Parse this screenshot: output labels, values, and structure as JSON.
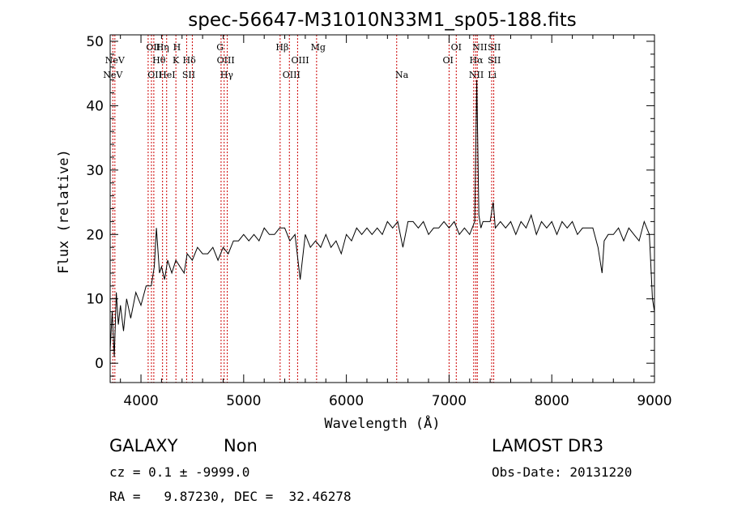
{
  "chart_data": {
    "type": "line",
    "title": "spec-56647-M31010N33M1_sp05-188.fits",
    "xlabel": "Wavelength (Å)",
    "ylabel": "Flux (relative)",
    "xlim": [
      3700,
      9000
    ],
    "ylim": [
      -3,
      51
    ],
    "x_ticks": [
      4000,
      5000,
      6000,
      7000,
      8000,
      9000
    ],
    "y_ticks": [
      0,
      10,
      20,
      30,
      40,
      50
    ],
    "grid": false,
    "line_color": "#000000",
    "marker_color": "#cc0000",
    "spectrum": {
      "x": [
        3700,
        3720,
        3740,
        3760,
        3780,
        3800,
        3830,
        3860,
        3900,
        3950,
        4000,
        4050,
        4100,
        4130,
        4150,
        4180,
        4200,
        4230,
        4260,
        4300,
        4340,
        4380,
        4420,
        4450,
        4500,
        4550,
        4600,
        4650,
        4700,
        4750,
        4800,
        4850,
        4900,
        4950,
        5000,
        5050,
        5100,
        5150,
        5200,
        5250,
        5300,
        5350,
        5400,
        5450,
        5500,
        5550,
        5600,
        5650,
        5700,
        5750,
        5800,
        5850,
        5900,
        5950,
        6000,
        6050,
        6100,
        6150,
        6200,
        6250,
        6300,
        6350,
        6400,
        6450,
        6500,
        6550,
        6600,
        6650,
        6700,
        6750,
        6800,
        6850,
        6900,
        6950,
        7000,
        7050,
        7100,
        7150,
        7200,
        7250,
        7270,
        7290,
        7310,
        7330,
        7350,
        7400,
        7430,
        7450,
        7500,
        7550,
        7600,
        7650,
        7700,
        7750,
        7800,
        7850,
        7900,
        7950,
        8000,
        8050,
        8100,
        8150,
        8200,
        8250,
        8300,
        8350,
        8400,
        8450,
        8490,
        8510,
        8550,
        8600,
        8650,
        8700,
        8750,
        8800,
        8850,
        8900,
        8950,
        8980,
        9000
      ],
      "y": [
        2,
        8,
        1,
        11,
        6,
        9,
        5,
        10,
        7,
        11,
        9,
        12,
        12,
        15,
        21,
        14,
        15,
        13,
        16,
        14,
        16,
        15,
        14,
        17,
        16,
        18,
        17,
        17,
        18,
        16,
        18,
        17,
        19,
        19,
        20,
        19,
        20,
        19,
        21,
        20,
        20,
        21,
        21,
        19,
        20,
        13,
        20,
        18,
        19,
        18,
        20,
        18,
        19,
        17,
        20,
        19,
        21,
        20,
        21,
        20,
        21,
        20,
        22,
        21,
        22,
        18,
        22,
        22,
        21,
        22,
        20,
        21,
        21,
        22,
        21,
        22,
        20,
        21,
        20,
        22,
        44,
        23,
        21,
        22,
        22,
        22,
        25,
        21,
        22,
        21,
        22,
        20,
        22,
        21,
        23,
        20,
        22,
        21,
        22,
        20,
        22,
        21,
        22,
        20,
        21,
        21,
        21,
        18,
        14,
        19,
        20,
        20,
        21,
        19,
        21,
        20,
        19,
        22,
        20,
        10,
        8
      ]
    },
    "annotations": [
      {
        "label": "NeV",
        "x": 3746,
        "row": 1
      },
      {
        "label": "NeV",
        "x": 3726,
        "row": 2
      },
      {
        "label": "OII",
        "x": 4120,
        "row": 0
      },
      {
        "label": "Hθ",
        "x": 4175,
        "row": 1
      },
      {
        "label": "OII",
        "x": 4135,
        "row": 2
      },
      {
        "label": "Hη",
        "x": 4210,
        "row": 0
      },
      {
        "label": "HeI",
        "x": 4255,
        "row": 2
      },
      {
        "label": "H",
        "x": 4350,
        "row": 0
      },
      {
        "label": "K",
        "x": 4340,
        "row": 1
      },
      {
        "label": "Hδ",
        "x": 4470,
        "row": 1
      },
      {
        "label": "SII",
        "x": 4465,
        "row": 2
      },
      {
        "label": "G",
        "x": 4770,
        "row": 0
      },
      {
        "label": "OIII",
        "x": 4825,
        "row": 1
      },
      {
        "label": "Hγ",
        "x": 4835,
        "row": 2
      },
      {
        "label": "Hβ",
        "x": 5375,
        "row": 0
      },
      {
        "label": "OIII",
        "x": 5550,
        "row": 1
      },
      {
        "label": "OIII",
        "x": 5465,
        "row": 2
      },
      {
        "label": "Mg",
        "x": 5725,
        "row": 0
      },
      {
        "label": "Na",
        "x": 6540,
        "row": 2
      },
      {
        "label": "OI",
        "x": 7070,
        "row": 0
      },
      {
        "label": "OI",
        "x": 6990,
        "row": 1
      },
      {
        "label": "NII",
        "x": 7300,
        "row": 0
      },
      {
        "label": "Hα",
        "x": 7265,
        "row": 1
      },
      {
        "label": "NII",
        "x": 7265,
        "row": 2
      },
      {
        "label": "SII",
        "x": 7440,
        "row": 0
      },
      {
        "label": "SII",
        "x": 7440,
        "row": 1
      },
      {
        "label": "Li",
        "x": 7420,
        "row": 2
      }
    ],
    "marker_lines": [
      3726,
      3746,
      4070,
      4102,
      4125,
      4210,
      4250,
      4340,
      4445,
      4500,
      4780,
      4810,
      4840,
      5355,
      5445,
      5525,
      5710,
      6490,
      7000,
      7070,
      7240,
      7260,
      7275,
      7415,
      7435
    ]
  },
  "info": {
    "object_type": "GALAXY",
    "subclass": "Non",
    "survey": "LAMOST DR3",
    "redshift": "cz = 0.1 ± -9999.0",
    "obs_date": "Obs-Date: 20131220",
    "coords": "RA =   9.87230, DEC =  32.46278"
  }
}
